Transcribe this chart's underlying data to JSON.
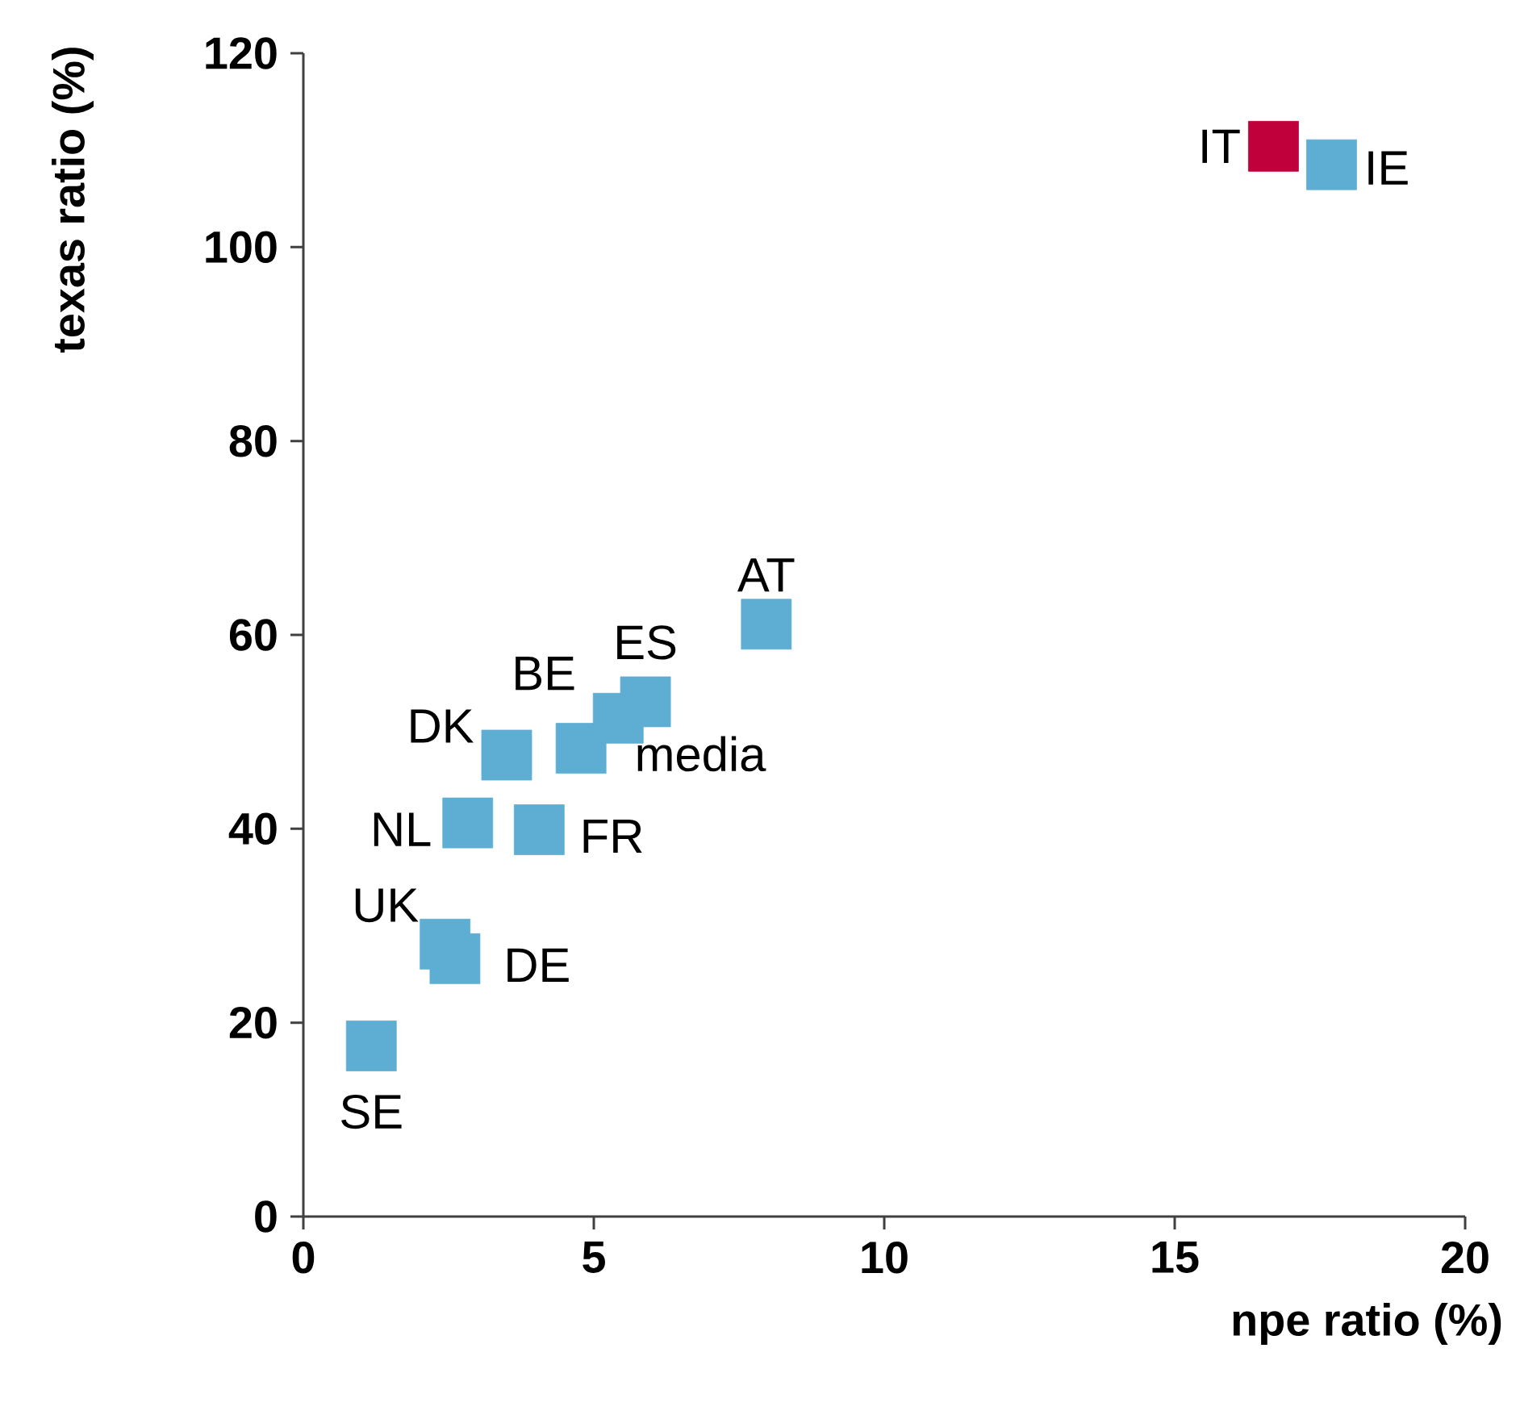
{
  "chart_data": {
    "type": "scatter",
    "xlabel": "npe ratio (%)",
    "ylabel": "texas ratio (%)",
    "x": [
      16.7,
      17.7,
      7.97,
      5.89,
      5.42,
      4.78,
      3.5,
      2.83,
      4.06,
      2.44,
      2.61,
      1.17
    ],
    "values": [
      110.4,
      108.5,
      61.1,
      53.1,
      51.4,
      48.3,
      47.6,
      40.6,
      39.9,
      28.1,
      26.6,
      17.6
    ],
    "colors": [
      "#c0003a",
      "#5eaed3",
      "#5eaed3",
      "#5eaed3",
      "#5eaed3",
      "#5eaed3",
      "#5eaed3",
      "#5eaed3",
      "#5eaed3",
      "#5eaed3",
      "#5eaed3",
      "#5eaed3"
    ],
    "marker": "square",
    "xlim": [
      0,
      20
    ],
    "ylim": [
      0,
      120
    ],
    "xticks": [
      0,
      5,
      10,
      15,
      20
    ],
    "yticks": [
      0,
      20,
      40,
      60,
      80,
      100,
      120
    ],
    "annotations": [
      {
        "text": "IT",
        "x": 16.7,
        "y": 110.4
      },
      {
        "text": "IE",
        "x": 17.7,
        "y": 108.5
      },
      {
        "text": "AT",
        "x": 7.97,
        "y": 61.1
      },
      {
        "text": "ES",
        "x": 5.89,
        "y": 53.1
      },
      {
        "text": "media",
        "x": 5.42,
        "y": 51.4
      },
      {
        "text": "BE",
        "x": 4.78,
        "y": 48.3
      },
      {
        "text": "DK",
        "x": 3.5,
        "y": 47.6
      },
      {
        "text": "NL",
        "x": 2.83,
        "y": 40.6
      },
      {
        "text": "FR",
        "x": 4.06,
        "y": 39.9
      },
      {
        "text": "UK",
        "x": 2.44,
        "y": 28.1
      },
      {
        "text": "DE",
        "x": 2.61,
        "y": 26.6
      },
      {
        "text": "SE",
        "x": 1.17,
        "y": 17.6
      }
    ]
  }
}
